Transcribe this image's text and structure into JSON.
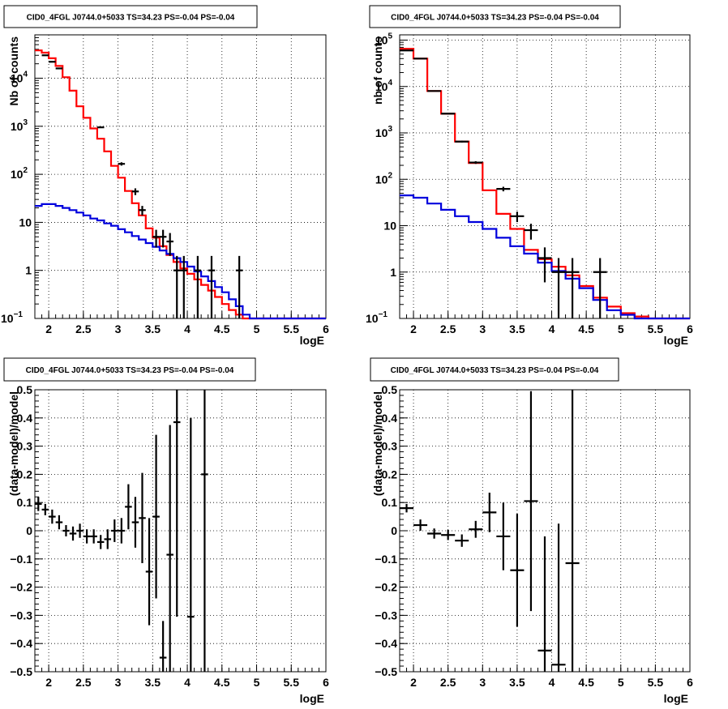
{
  "chart_data": [
    {
      "type": "line",
      "title": "CID0_4FGL J0744.0+5033 TS=34.23 PS=-0.04 PS=-0.04",
      "xlabel": "logE",
      "ylabel": "Nb of counts",
      "xlim": [
        1.8,
        6
      ],
      "ylim": [
        0.1,
        80000
      ],
      "yscale": "log",
      "grid": true,
      "xticks": [
        "2",
        "2.5",
        "3",
        "3.5",
        "4",
        "4.5",
        "5",
        "5.5",
        "6"
      ],
      "yticks": [
        {
          "v": 0.1,
          "t": "10",
          "e": "−1"
        },
        {
          "v": 1,
          "t": "1",
          "e": ""
        },
        {
          "v": 10,
          "t": "10",
          "e": ""
        },
        {
          "v": 100,
          "t": "10",
          "e": "2"
        },
        {
          "v": 1000,
          "t": "10",
          "e": "3"
        },
        {
          "v": 10000,
          "t": "10",
          "e": "4"
        }
      ],
      "bin_edges": [
        1.8,
        1.9,
        2.0,
        2.1,
        2.2,
        2.3,
        2.4,
        2.5,
        2.6,
        2.7,
        2.8,
        2.9,
        3.0,
        3.1,
        3.2,
        3.3,
        3.4,
        3.5,
        3.6,
        3.7,
        3.8,
        3.9,
        4.0,
        4.1,
        4.2,
        4.3,
        4.4,
        4.5,
        4.6,
        4.7,
        4.8,
        4.9,
        5.0,
        5.1,
        5.2,
        5.3,
        5.4,
        5.5,
        5.6,
        5.7,
        5.8,
        5.9,
        6.0
      ],
      "series": [
        {
          "role": "model",
          "color": "#ff0000",
          "values": [
            38000,
            34000,
            26000,
            18000,
            10500,
            5500,
            2600,
            1500,
            900,
            550,
            300,
            150,
            85,
            45,
            25,
            14,
            7.5,
            4.8,
            3.2,
            2.1,
            1.5,
            1.1,
            0.85,
            0.65,
            0.5,
            0.38,
            0.28,
            0.2,
            0.15,
            0.12,
            0.1,
            0.1,
            0.1,
            0.1,
            0.1,
            0.1,
            0.1,
            0.1,
            0.1,
            0.1,
            0.1,
            0.1
          ]
        },
        {
          "role": "background",
          "color": "#0000dd",
          "values": [
            22,
            24,
            24,
            22,
            20,
            18,
            16,
            14,
            12,
            11,
            9.5,
            8.5,
            7.2,
            6.2,
            5.2,
            4.4,
            3.7,
            3.1,
            2.6,
            2.2,
            1.8,
            1.5,
            1.2,
            0.95,
            0.75,
            0.6,
            0.45,
            0.35,
            0.25,
            0.18,
            0.12,
            0.1,
            0.1,
            0.1,
            0.1,
            0.1,
            0.1,
            0.1,
            0.1,
            0.1,
            0.1,
            0.1
          ]
        }
      ],
      "points": [
        {
          "x": 1.95,
          "y": 30000,
          "lo": 29800,
          "hi": 30200
        },
        {
          "x": 2.05,
          "y": 22000,
          "lo": 21800,
          "hi": 22200
        },
        {
          "x": 2.15,
          "y": 16000,
          "lo": 15800,
          "hi": 16200
        },
        {
          "x": 2.75,
          "y": 950,
          "lo": 920,
          "hi": 980
        },
        {
          "x": 3.05,
          "y": 165,
          "lo": 152,
          "hi": 178
        },
        {
          "x": 3.25,
          "y": 44,
          "lo": 37,
          "hi": 51
        },
        {
          "x": 3.35,
          "y": 18,
          "lo": 14,
          "hi": 22
        },
        {
          "x": 3.55,
          "y": 5,
          "lo": 3,
          "hi": 7
        },
        {
          "x": 3.65,
          "y": 5,
          "lo": 3,
          "hi": 7
        },
        {
          "x": 3.75,
          "y": 4,
          "lo": 2,
          "hi": 6
        },
        {
          "x": 3.85,
          "y": 1,
          "lo": 0.1,
          "hi": 2
        },
        {
          "x": 3.95,
          "y": 1,
          "lo": 0.1,
          "hi": 2
        },
        {
          "x": 4.15,
          "y": 1,
          "lo": 0.1,
          "hi": 2
        },
        {
          "x": 4.35,
          "y": 1,
          "lo": 0.1,
          "hi": 2
        },
        {
          "x": 4.75,
          "y": 1,
          "lo": 0.1,
          "hi": 2
        }
      ]
    },
    {
      "type": "line",
      "title": "CID0_4FGL J0744.0+5033 TS=34.23 PS=-0.04 PS=-0.04",
      "xlabel": "logE",
      "ylabel": "nb of counts",
      "xlim": [
        1.8,
        6
      ],
      "ylim": [
        0.1,
        130000
      ],
      "yscale": "log",
      "grid": true,
      "xticks": [
        "2",
        "2.5",
        "3",
        "3.5",
        "4",
        "4.5",
        "5",
        "5.5",
        "6"
      ],
      "yticks": [
        {
          "v": 0.1,
          "t": "10",
          "e": "−1"
        },
        {
          "v": 1,
          "t": "1",
          "e": ""
        },
        {
          "v": 10,
          "t": "10",
          "e": ""
        },
        {
          "v": 100,
          "t": "10",
          "e": "2"
        },
        {
          "v": 1000,
          "t": "10",
          "e": "3"
        },
        {
          "v": 10000,
          "t": "10",
          "e": "4"
        },
        {
          "v": 100000,
          "t": "10",
          "e": "5"
        }
      ],
      "bin_edges": [
        1.8,
        2.0,
        2.2,
        2.4,
        2.6,
        2.8,
        3.0,
        3.2,
        3.4,
        3.6,
        3.8,
        4.0,
        4.2,
        4.4,
        4.6,
        4.8,
        5.0,
        5.2,
        5.4,
        5.6,
        5.8,
        6.0
      ],
      "series": [
        {
          "role": "model",
          "color": "#ff0000",
          "values": [
            65000,
            40000,
            8000,
            2600,
            650,
            225,
            58,
            18,
            8.5,
            3.0,
            1.9,
            1.3,
            0.85,
            0.5,
            0.28,
            0.18,
            0.13,
            0.11,
            0.1,
            0.1,
            0.1
          ]
        },
        {
          "role": "background",
          "color": "#0000dd",
          "values": [
            45,
            40,
            30,
            22,
            16,
            12,
            8.5,
            5.5,
            3.6,
            2.5,
            1.6,
            1.05,
            0.72,
            0.45,
            0.25,
            0.15,
            0.12,
            0.1,
            0.1,
            0.1,
            0.1
          ]
        }
      ],
      "points": [
        {
          "x": 1.9,
          "y": 60000,
          "lo": 59700,
          "hi": 60300
        },
        {
          "x": 2.1,
          "y": 40000,
          "lo": 39700,
          "hi": 40300
        },
        {
          "x": 2.3,
          "y": 8000,
          "lo": 7850,
          "hi": 8150
        },
        {
          "x": 2.5,
          "y": 2600,
          "lo": 2530,
          "hi": 2670
        },
        {
          "x": 2.7,
          "y": 650,
          "lo": 620,
          "hi": 680
        },
        {
          "x": 2.9,
          "y": 230,
          "lo": 215,
          "hi": 245
        },
        {
          "x": 3.3,
          "y": 62,
          "lo": 55,
          "hi": 69
        },
        {
          "x": 3.5,
          "y": 16,
          "lo": 12,
          "hi": 20
        },
        {
          "x": 3.7,
          "y": 8,
          "lo": 5,
          "hi": 11
        },
        {
          "x": 3.9,
          "y": 2,
          "lo": 0.6,
          "hi": 3.4
        },
        {
          "x": 4.1,
          "y": 1,
          "lo": 0.1,
          "hi": 2
        },
        {
          "x": 4.3,
          "y": 1,
          "lo": 0.1,
          "hi": 2
        },
        {
          "x": 4.7,
          "y": 1,
          "lo": 0.1,
          "hi": 2
        }
      ]
    },
    {
      "type": "scatter",
      "title": "CID0_4FGL J0744.0+5033 TS=34.23 PS=-0.04 PS=-0.04",
      "xlabel": "logE",
      "ylabel": "(data-model)/model",
      "xlim": [
        1.8,
        6
      ],
      "ylim": [
        -0.5,
        0.5
      ],
      "grid": true,
      "xticks": [
        "2",
        "2.5",
        "3",
        "3.5",
        "4",
        "4.5",
        "5",
        "5.5",
        "6"
      ],
      "yticks": [
        "−0.5",
        "−0.4",
        "−0.3",
        "−0.2",
        "−0.1",
        "0",
        "0.1",
        "0.2",
        "0.3",
        "0.4",
        "0.5"
      ],
      "bin_width": 0.1,
      "points": [
        {
          "x": 1.85,
          "y": 0.095,
          "err": 0.025
        },
        {
          "x": 1.95,
          "y": 0.075,
          "err": 0.02
        },
        {
          "x": 2.05,
          "y": 0.05,
          "err": 0.025
        },
        {
          "x": 2.15,
          "y": 0.03,
          "err": 0.025
        },
        {
          "x": 2.25,
          "y": 0.0,
          "err": 0.02
        },
        {
          "x": 2.35,
          "y": -0.01,
          "err": 0.025
        },
        {
          "x": 2.45,
          "y": 0.0,
          "err": 0.025
        },
        {
          "x": 2.55,
          "y": -0.02,
          "err": 0.025
        },
        {
          "x": 2.65,
          "y": -0.02,
          "err": 0.025
        },
        {
          "x": 2.75,
          "y": -0.04,
          "err": 0.025
        },
        {
          "x": 2.85,
          "y": -0.03,
          "err": 0.035
        },
        {
          "x": 2.95,
          "y": 0.0,
          "err": 0.04
        },
        {
          "x": 3.05,
          "y": 0.0,
          "err": 0.045
        },
        {
          "x": 3.15,
          "y": 0.085,
          "err": 0.08
        },
        {
          "x": 3.25,
          "y": 0.03,
          "err": 0.09
        },
        {
          "x": 3.35,
          "y": 0.045,
          "err": 0.16
        },
        {
          "x": 3.45,
          "y": -0.145,
          "err": 0.19
        },
        {
          "x": 3.55,
          "y": 0.05,
          "err": 0.29
        },
        {
          "x": 3.65,
          "y": -0.45,
          "err": 0.13
        },
        {
          "x": 3.75,
          "y": -0.085,
          "err": 0.46
        },
        {
          "x": 3.85,
          "y": 0.385,
          "err": 0.69
        },
        {
          "x": 4.05,
          "y": -0.305,
          "err": 0.705
        },
        {
          "x": 4.25,
          "y": 0.2,
          "err": 1.2
        }
      ]
    },
    {
      "type": "scatter",
      "title": "CID0_4FGL J0744.0+5033 TS=34.23 PS=-0.04 PS=-0.04",
      "xlabel": "logE",
      "ylabel": "(data-model)/model",
      "xlim": [
        1.8,
        6
      ],
      "ylim": [
        -0.5,
        0.5
      ],
      "grid": true,
      "xticks": [
        "2",
        "2.5",
        "3",
        "3.5",
        "4",
        "4.5",
        "5",
        "5.5",
        "6"
      ],
      "yticks": [
        "−0.5",
        "−0.4",
        "−0.3",
        "−0.2",
        "−0.1",
        "0",
        "0.1",
        "0.2",
        "0.3",
        "0.4",
        "0.5"
      ],
      "bin_width": 0.2,
      "points": [
        {
          "x": 1.9,
          "y": 0.08,
          "err": 0.015
        },
        {
          "x": 2.1,
          "y": 0.02,
          "err": 0.02
        },
        {
          "x": 2.3,
          "y": -0.01,
          "err": 0.018
        },
        {
          "x": 2.5,
          "y": -0.015,
          "err": 0.018
        },
        {
          "x": 2.7,
          "y": -0.035,
          "err": 0.022
        },
        {
          "x": 2.9,
          "y": 0.005,
          "err": 0.03
        },
        {
          "x": 3.1,
          "y": 0.065,
          "err": 0.07
        },
        {
          "x": 3.3,
          "y": -0.02,
          "err": 0.12
        },
        {
          "x": 3.5,
          "y": -0.14,
          "err": 0.2
        },
        {
          "x": 3.7,
          "y": 0.105,
          "err": 0.39
        },
        {
          "x": 3.9,
          "y": -0.425,
          "err": 0.405
        },
        {
          "x": 4.1,
          "y": -0.475,
          "err": 0.5
        },
        {
          "x": 4.3,
          "y": -0.115,
          "err": 0.96
        }
      ]
    }
  ]
}
